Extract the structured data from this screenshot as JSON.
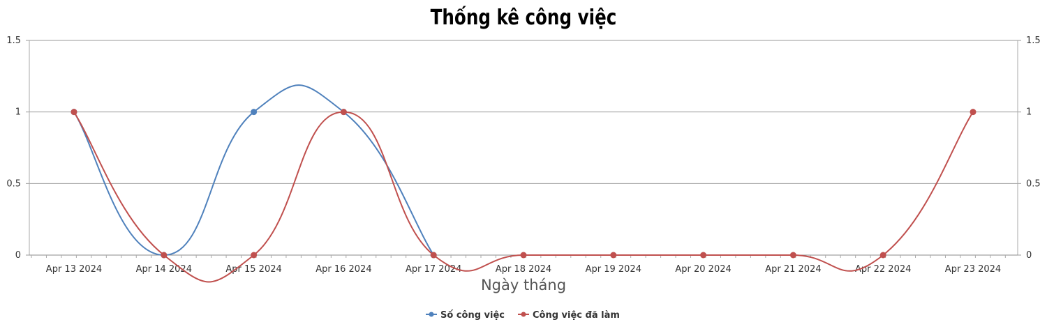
{
  "chart_data": {
    "type": "line",
    "title": "Thống kê công việc",
    "xlabel": "Ngày tháng",
    "ylabel": "",
    "categories": [
      "Apr 13 2024",
      "Apr 14 2024",
      "Apr 15 2024",
      "Apr 16 2024",
      "Apr 17 2024",
      "Apr 18 2024",
      "Apr 19 2024",
      "Apr 20 2024",
      "Apr 21 2024",
      "Apr 22 2024",
      "Apr 23 2024"
    ],
    "ylim": [
      0,
      1.5
    ],
    "yticks": [
      "0",
      "0.5",
      "1",
      "1.5"
    ],
    "grid": true,
    "legend_position": "bottom",
    "series": [
      {
        "name": "Số công việc",
        "color": "#4f81bc",
        "points": [
          {
            "x": "Apr 13 2024",
            "y": 1
          },
          {
            "x": "Apr 14 2024",
            "y": 0
          },
          {
            "x": "Apr 15 2024",
            "y": 1
          },
          {
            "x": "Apr 16 2024",
            "y": 1
          },
          {
            "x": "Apr 17 2024",
            "y": 0
          }
        ]
      },
      {
        "name": "Công việc đã làm",
        "color": "#c0504e",
        "points": [
          {
            "x": "Apr 13 2024",
            "y": 1
          },
          {
            "x": "Apr 14 2024",
            "y": 0
          },
          {
            "x": "Apr 15 2024",
            "y": 0
          },
          {
            "x": "Apr 16 2024",
            "y": 1
          },
          {
            "x": "Apr 17 2024",
            "y": 0
          },
          {
            "x": "Apr 18 2024",
            "y": 0
          },
          {
            "x": "Apr 19 2024",
            "y": 0
          },
          {
            "x": "Apr 20 2024",
            "y": 0
          },
          {
            "x": "Apr 21 2024",
            "y": 0
          },
          {
            "x": "Apr 22 2024",
            "y": 0
          },
          {
            "x": "Apr 23 2024",
            "y": 1
          }
        ]
      }
    ]
  }
}
